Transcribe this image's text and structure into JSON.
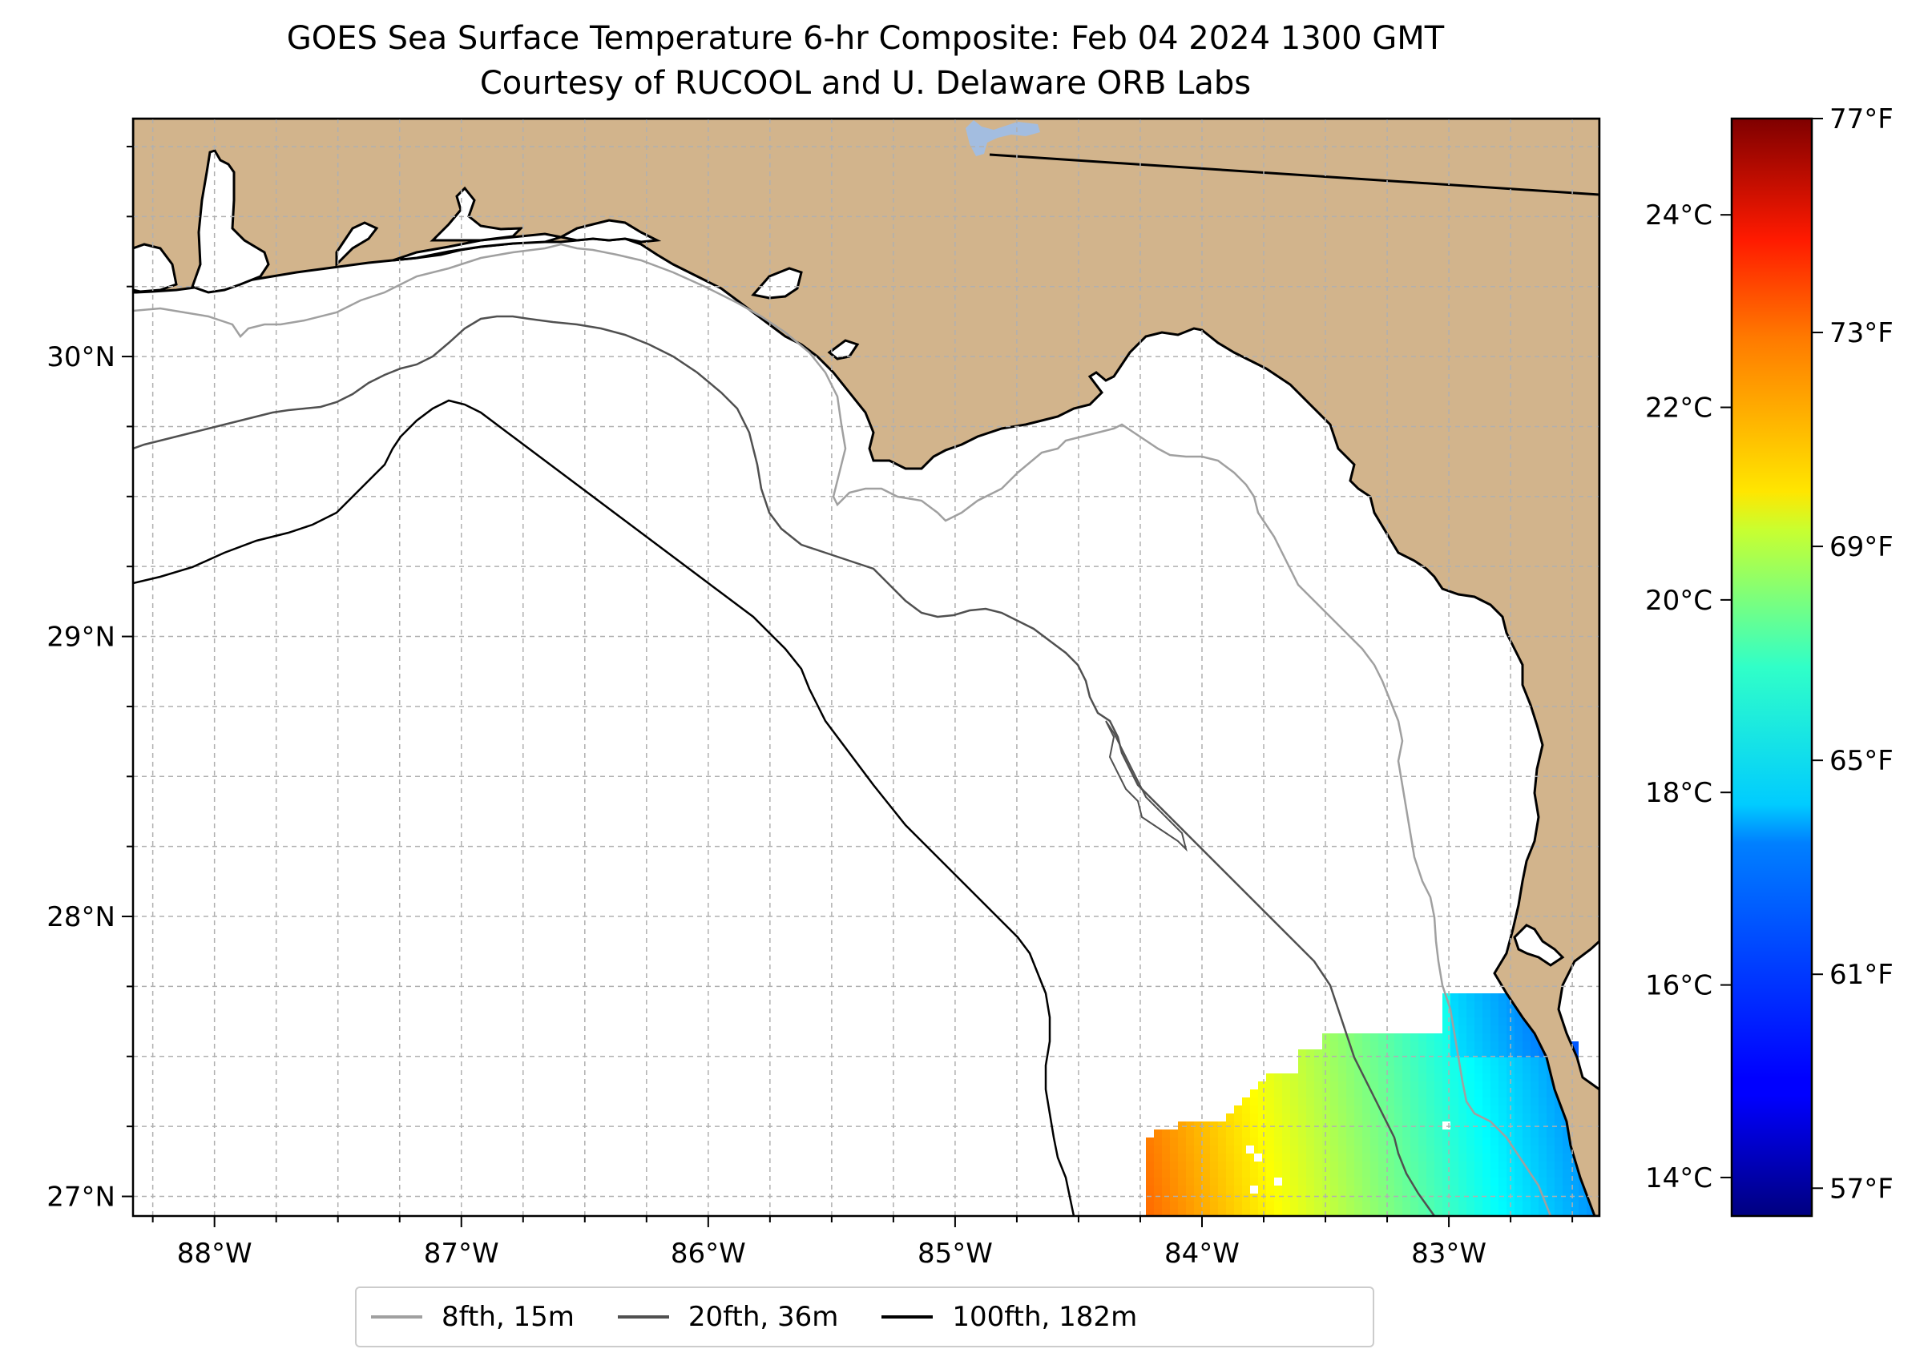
{
  "title": "GOES Sea Surface Temperature 6-hr Composite: Feb 04 2024 1300 GMT",
  "subtitle": "Courtesy of RUCOOL and U. Delaware ORB Labs",
  "map": {
    "lon_range": [
      -88.33,
      -82.39
    ],
    "lat_range": [
      26.93,
      30.85
    ],
    "land_color": "#d2b48c",
    "lake_color": "#a3bde0",
    "grid": "dashed, every 0.25 degree"
  },
  "axes": {
    "lon_ticks": [
      {
        "value": -88,
        "label": "88°W"
      },
      {
        "value": -87,
        "label": "87°W"
      },
      {
        "value": -86,
        "label": "86°W"
      },
      {
        "value": -85,
        "label": "85°W"
      },
      {
        "value": -84,
        "label": "84°W"
      },
      {
        "value": -83,
        "label": "83°W"
      }
    ],
    "lat_ticks": [
      {
        "value": 27,
        "label": "27°N"
      },
      {
        "value": 28,
        "label": "28°N"
      },
      {
        "value": 29,
        "label": "29°N"
      },
      {
        "value": 30,
        "label": "30°N"
      }
    ]
  },
  "colorbar": {
    "colormap": "jet",
    "range_c": [
      13.6,
      25.0
    ],
    "celsius_ticks": [
      {
        "value": 14,
        "label": "14°C"
      },
      {
        "value": 16,
        "label": "16°C"
      },
      {
        "value": 18,
        "label": "18°C"
      },
      {
        "value": 20,
        "label": "20°C"
      },
      {
        "value": 22,
        "label": "22°C"
      },
      {
        "value": 24,
        "label": "24°C"
      }
    ],
    "fahrenheit_ticks": [
      {
        "value": 57,
        "label": "57°F"
      },
      {
        "value": 61,
        "label": "61°F"
      },
      {
        "value": 65,
        "label": "65°F"
      },
      {
        "value": 69,
        "label": "69°F"
      },
      {
        "value": 73,
        "label": "73°F"
      },
      {
        "value": 77,
        "label": "77°F"
      }
    ]
  },
  "legend": {
    "placement": "bottom-center, below map",
    "items": [
      {
        "label": "8fth, 15m",
        "color": "#a0a0a0"
      },
      {
        "label": "20fth, 36m",
        "color": "#505050"
      },
      {
        "label": "100fth, 182m",
        "color": "#000000"
      }
    ]
  },
  "sst_field": {
    "description_region": "southeast corner of map",
    "units": "°C"
  }
}
